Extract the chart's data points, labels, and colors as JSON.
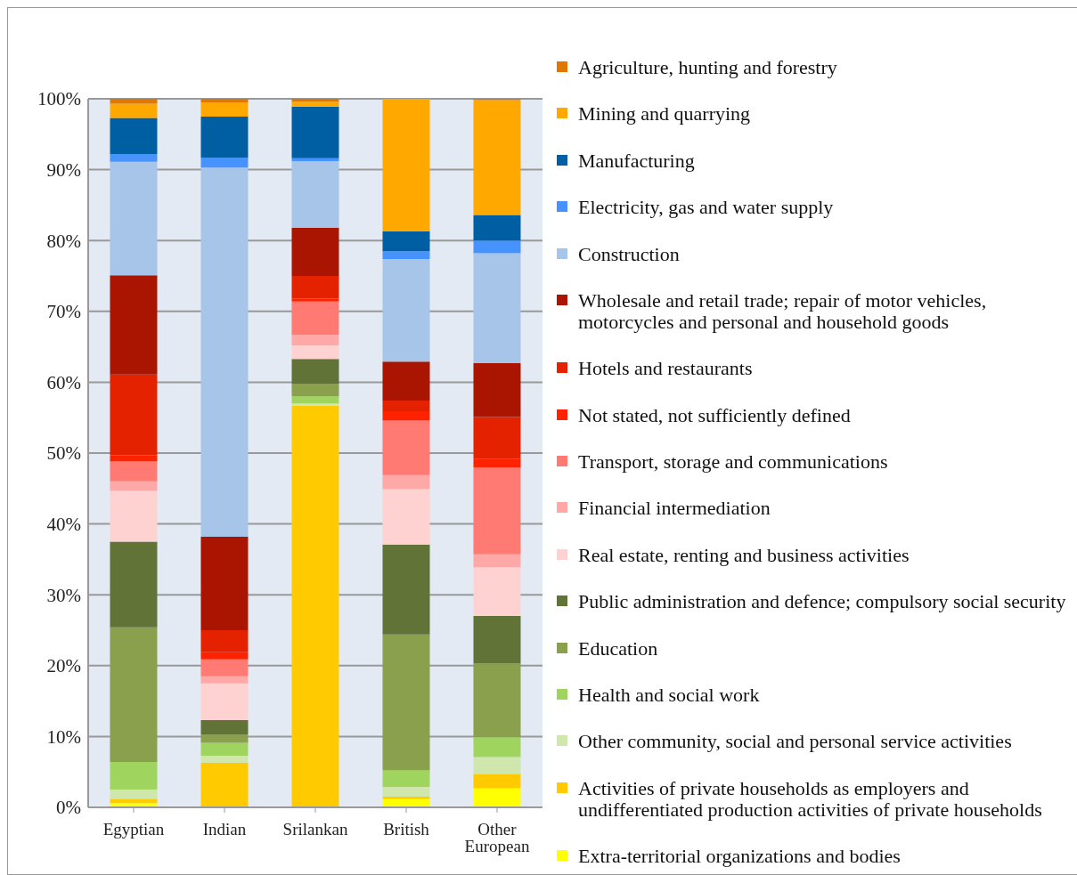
{
  "chart_data": {
    "type": "bar",
    "stacked": true,
    "categories": [
      "Egyptian",
      "Indian",
      "Srilankan",
      "British",
      "Other European"
    ],
    "ylim": [
      0,
      100
    ],
    "yticks": [
      {
        "value": 0,
        "label": "0%"
      },
      {
        "value": 10,
        "label": "10%"
      },
      {
        "value": 20,
        "label": "20%"
      },
      {
        "value": 30,
        "label": "30%"
      },
      {
        "value": 40,
        "label": "40%"
      },
      {
        "value": 50,
        "label": "50%"
      },
      {
        "value": 60,
        "label": "60%"
      },
      {
        "value": 70,
        "label": "70%"
      },
      {
        "value": 80,
        "label": "80%"
      },
      {
        "value": 90,
        "label": "90%"
      },
      {
        "value": 100,
        "label": "100%"
      }
    ],
    "grid": "y",
    "legend": "right",
    "series": [
      {
        "name": "Extra-territorial organizations and bodies",
        "color": "#ffff00",
        "values": [
          0.6,
          0,
          0,
          1.2,
          2.7
        ]
      },
      {
        "name": "Activities of private households as employers and undifferentiated production activities of private households",
        "color": "#ffcb00",
        "values": [
          0.6,
          6.3,
          56.7,
          0.3,
          2.0
        ]
      },
      {
        "name": "Other community, social and personal service activities",
        "color": "#cfe6ad",
        "values": [
          1.3,
          1.0,
          0.3,
          1.4,
          2.4
        ]
      },
      {
        "name": "Health and social work",
        "color": "#9fd45e",
        "values": [
          3.9,
          1.8,
          1.0,
          2.3,
          2.8
        ]
      },
      {
        "name": "Education",
        "color": "#8ba04d",
        "values": [
          19.0,
          1.2,
          1.8,
          19.2,
          10.4
        ]
      },
      {
        "name": "Public administration and defence; compulsory social security",
        "color": "#617337",
        "values": [
          12.1,
          2.0,
          3.5,
          12.7,
          6.7
        ]
      },
      {
        "name": "Real estate, renting and business activities",
        "color": "#ffd2d2",
        "values": [
          7.2,
          5.2,
          1.9,
          7.8,
          6.9
        ]
      },
      {
        "name": "Financial intermediation",
        "color": "#ffa8a8",
        "values": [
          1.3,
          1.0,
          1.5,
          2.0,
          1.8
        ]
      },
      {
        "name": "Transport, storage and communications",
        "color": "#ff7a72",
        "values": [
          2.8,
          2.4,
          4.7,
          7.7,
          12.3
        ]
      },
      {
        "name": "Not stated, not sufficiently defined",
        "color": "#ff2200",
        "values": [
          0.9,
          1.0,
          0.4,
          1.3,
          1.2
        ]
      },
      {
        "name": "Hotels and restaurants",
        "color": "#e52200",
        "values": [
          11.4,
          3.1,
          3.2,
          1.5,
          5.9
        ]
      },
      {
        "name": "Wholesale and retail trade; repair of motor vehicles, motorcycles and personal and household goods",
        "color": "#a91500",
        "values": [
          14.0,
          13.2,
          6.8,
          5.5,
          7.6
        ]
      },
      {
        "name": "Construction",
        "color": "#a6c5e9",
        "values": [
          16.0,
          52.1,
          9.4,
          14.5,
          15.5
        ]
      },
      {
        "name": "Electricity, gas and water supply",
        "color": "#4693ff",
        "values": [
          1.1,
          1.4,
          0.4,
          1.1,
          1.8
        ]
      },
      {
        "name": "Manufacturing",
        "color": "#005ea2",
        "values": [
          5.1,
          5.8,
          7.3,
          2.8,
          3.6
        ]
      },
      {
        "name": "Mining and quarrying",
        "color": "#ffa800",
        "values": [
          2.0,
          2.0,
          0.7,
          18.7,
          16.2
        ]
      },
      {
        "name": "Agriculture, hunting and forestry",
        "color": "#e07800",
        "values": [
          0.7,
          0.5,
          0.4,
          0,
          0.2
        ]
      }
    ]
  }
}
